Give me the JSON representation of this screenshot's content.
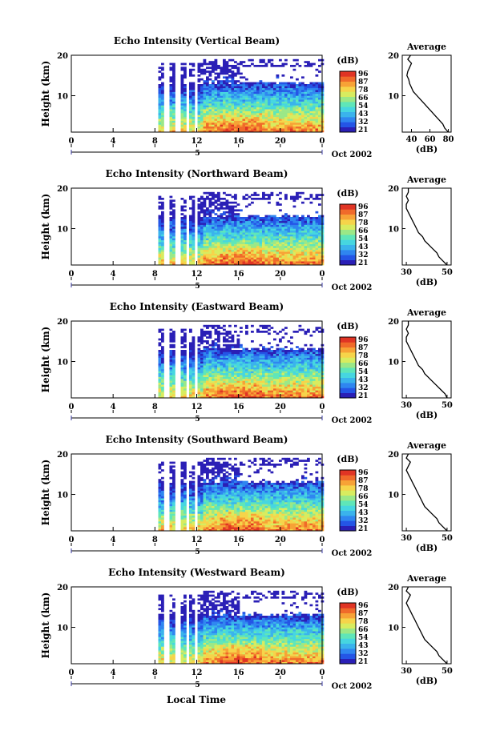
{
  "colors": {
    "scale": [
      "#2a1fb6",
      "#2455e6",
      "#2f86f0",
      "#3ab3ec",
      "#46d6e0",
      "#5fe6b8",
      "#9be887",
      "#d8ec5f",
      "#f6d44a",
      "#f7a236",
      "#f06a2a",
      "#e03424"
    ],
    "missing": "#ffffff"
  },
  "colorbar": {
    "title": "(dB)",
    "ticks": [
      "96",
      "87",
      "78",
      "66",
      "54",
      "43",
      "32",
      "21"
    ]
  },
  "footer": {
    "xlabel": "Local Time",
    "date": "Oct 2002",
    "ticks": [
      "0",
      "4",
      "8",
      "12",
      "16",
      "20",
      "0"
    ],
    "day_marker": "5"
  },
  "chart_data": [
    {
      "type": "heatmap",
      "title": "Echo Intensity (Vertical Beam)",
      "ylabel": "Height (km)",
      "yticks": [
        "20",
        "10"
      ],
      "xlim": [
        0,
        24
      ],
      "ylim": [
        1,
        20
      ],
      "profile": {
        "title": "Average",
        "xlabel": "(dB)",
        "xticks": [
          "40",
          "60",
          "80"
        ],
        "xlim": [
          30,
          83
        ],
        "height": [
          1,
          2,
          3,
          4,
          5,
          6,
          7,
          8,
          9,
          10,
          11,
          12,
          13,
          14,
          15,
          16,
          17,
          18,
          19,
          20
        ],
        "value": [
          80,
          76,
          74,
          70,
          66,
          62,
          58,
          54,
          50,
          46,
          42,
          40,
          38,
          37,
          35,
          36,
          38,
          40,
          36,
          39
        ]
      }
    },
    {
      "type": "heatmap",
      "title": "Echo Intensity (Northward Beam)",
      "ylabel": "Height (km)",
      "yticks": [
        "20",
        "10"
      ],
      "xlim": [
        0,
        24
      ],
      "ylim": [
        1,
        20
      ],
      "profile": {
        "title": "Average",
        "xlabel": "(dB)",
        "xticks": [
          "30",
          "50"
        ],
        "xlim": [
          28,
          52
        ],
        "height": [
          1,
          2,
          3,
          4,
          5,
          6,
          7,
          8,
          9,
          10,
          11,
          12,
          13,
          14,
          15,
          16,
          17,
          18,
          19,
          20
        ],
        "value": [
          50,
          48,
          46,
          45,
          43,
          41,
          39,
          38,
          36,
          35,
          34,
          33,
          32,
          31,
          30,
          30,
          31,
          30,
          31,
          31
        ]
      }
    },
    {
      "type": "heatmap",
      "title": "Echo Intensity (Eastward Beam)",
      "ylabel": "Height (km)",
      "yticks": [
        "20",
        "10"
      ],
      "xlim": [
        0,
        24
      ],
      "ylim": [
        1,
        20
      ],
      "profile": {
        "title": "Average",
        "xlabel": "(dB)",
        "xticks": [
          "30",
          "50"
        ],
        "xlim": [
          28,
          52
        ],
        "height": [
          1,
          2,
          3,
          4,
          5,
          6,
          7,
          8,
          9,
          10,
          11,
          12,
          13,
          14,
          15,
          16,
          17,
          18,
          19,
          20
        ],
        "value": [
          50,
          49,
          47,
          45,
          43,
          41,
          39,
          38,
          36,
          35,
          34,
          33,
          32,
          31,
          30,
          30,
          31,
          30,
          31,
          31
        ]
      }
    },
    {
      "type": "heatmap",
      "title": "Echo Intensity (Southward Beam)",
      "ylabel": "Height (km)",
      "yticks": [
        "20",
        "10"
      ],
      "xlim": [
        0,
        24
      ],
      "ylim": [
        1,
        20
      ],
      "profile": {
        "title": "Average",
        "xlabel": "(dB)",
        "xticks": [
          "30",
          "50"
        ],
        "xlim": [
          28,
          52
        ],
        "height": [
          1,
          2,
          3,
          4,
          5,
          6,
          7,
          8,
          9,
          10,
          11,
          12,
          13,
          14,
          15,
          16,
          17,
          18,
          19,
          20
        ],
        "value": [
          50,
          48,
          46,
          45,
          43,
          41,
          39,
          38,
          37,
          36,
          35,
          34,
          33,
          32,
          31,
          30,
          31,
          32,
          30,
          31
        ]
      }
    },
    {
      "type": "heatmap",
      "title": "Echo Intensity (Westward Beam)",
      "ylabel": "Height (km)",
      "yticks": [
        "20",
        "10"
      ],
      "xlim": [
        0,
        24
      ],
      "ylim": [
        1,
        20
      ],
      "profile": {
        "title": "Average",
        "xlabel": "(dB)",
        "xticks": [
          "30",
          "50"
        ],
        "xlim": [
          28,
          52
        ],
        "height": [
          1,
          2,
          3,
          4,
          5,
          6,
          7,
          8,
          9,
          10,
          11,
          12,
          13,
          14,
          15,
          16,
          17,
          18,
          19,
          20
        ],
        "value": [
          50,
          48,
          46,
          45,
          43,
          41,
          39,
          38,
          37,
          36,
          35,
          34,
          33,
          32,
          31,
          30,
          31,
          32,
          30,
          31
        ]
      }
    }
  ]
}
